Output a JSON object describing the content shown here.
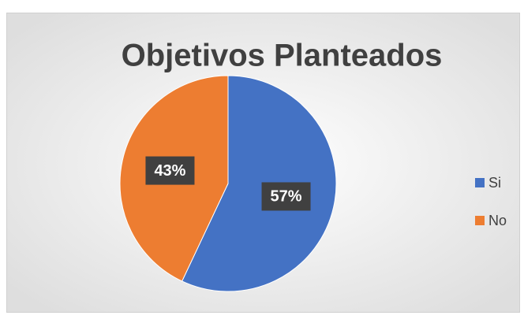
{
  "chart_data": {
    "type": "pie",
    "title": "Objetivos Planteados",
    "categories": [
      "Si",
      "No"
    ],
    "values": [
      57,
      43
    ],
    "value_labels": [
      "57%",
      "43%"
    ],
    "colors": [
      "#4472c4",
      "#ed7d31"
    ],
    "legend": "right"
  }
}
